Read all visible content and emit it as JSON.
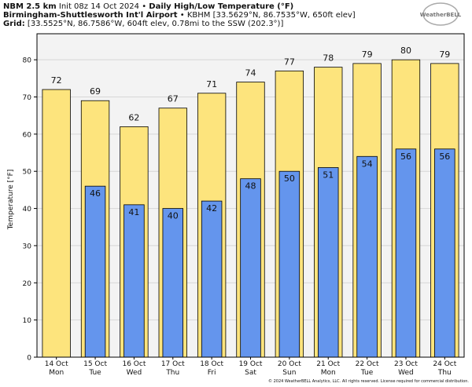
{
  "chart_data": {
    "type": "bar",
    "title_lines": [
      [
        {
          "text": "NBM 2.5 km",
          "bold": true
        },
        {
          "text": " Init 08z 14 Oct 2024 • ",
          "bold": false
        },
        {
          "text": "Daily High/Low Temperature (°F)",
          "bold": true
        }
      ],
      [
        {
          "text": "Birmingham-Shuttlesworth Int'l Airport",
          "bold": true
        },
        {
          "text": " • KBHM [33.5629°N, 86.7535°W, 650ft elev]",
          "bold": false
        }
      ],
      [
        {
          "text": "Grid:",
          "bold": true
        },
        {
          "text": " [33.5525°N, 86.7586°W, 604ft elev, 0.78mi to the SSW (202.3°)]",
          "bold": false
        }
      ]
    ],
    "logo": "WeatherBELL",
    "y_label": "Temperature [°F]",
    "footer": "© 2024 WeatherBELL Analytics, LLC. All rights reserved. License required for commercial distribution.",
    "categories": [
      [
        "14 Oct",
        "Mon"
      ],
      [
        "15 Oct",
        "Tue"
      ],
      [
        "16 Oct",
        "Wed"
      ],
      [
        "17 Oct",
        "Thu"
      ],
      [
        "18 Oct",
        "Fri"
      ],
      [
        "19 Oct",
        "Sat"
      ],
      [
        "20 Oct",
        "Sun"
      ],
      [
        "21 Oct",
        "Mon"
      ],
      [
        "22 Oct",
        "Tue"
      ],
      [
        "23 Oct",
        "Wed"
      ],
      [
        "24 Oct",
        "Thu"
      ]
    ],
    "series": [
      {
        "color": "#fde47d",
        "values": [
          72,
          69,
          62,
          67,
          71,
          74,
          77,
          78,
          79,
          80,
          79
        ]
      },
      {
        "color": "#6495ed",
        "values": [
          null,
          46,
          41,
          40,
          42,
          48,
          50,
          51,
          54,
          56,
          56
        ]
      }
    ],
    "ylim": [
      0,
      87
    ],
    "yticks": [
      0,
      10,
      20,
      30,
      40,
      50,
      60,
      70,
      80
    ],
    "grid": true
  }
}
